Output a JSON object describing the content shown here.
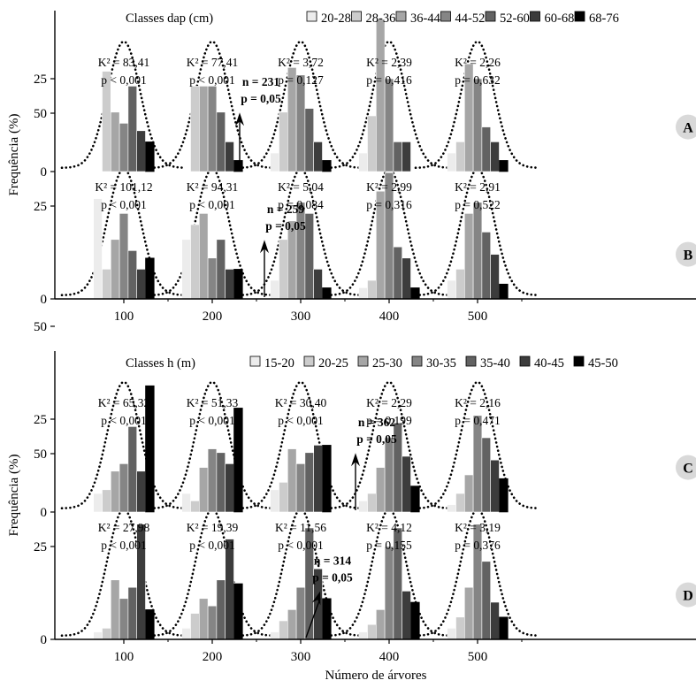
{
  "xlabel": "Número de árvores",
  "chart_data": [
    {
      "type": "bar",
      "ylabel": "Frequência (%)",
      "legend_title": "Classes dap (cm)",
      "legend_entries": [
        "20-28",
        "28-36",
        "36-44",
        "44-52",
        "52-60",
        "60-68",
        "68-76"
      ],
      "x_ticks": [
        "100",
        "200",
        "300",
        "400",
        "500"
      ],
      "y_ticks": [
        "0",
        "25",
        "50"
      ],
      "ylim": [
        0,
        85
      ],
      "panels": [
        {
          "label": "A",
          "groups": [
            {
              "n": 100,
              "k2": "K² = 83,41",
              "p": "p < 0,001",
              "values": [
                0,
                27,
                16,
                13,
                23,
                11,
                8
              ]
            },
            {
              "n": 200,
              "k2": "K² = 77,41",
              "p": "p < 0,001",
              "values": [
                0,
                23,
                23,
                23,
                16,
                8,
                3
              ]
            },
            {
              "n": 300,
              "k2": "K² = 3,72",
              "p": "p = 0,127",
              "values": [
                5,
                16,
                28,
                26,
                17,
                8,
                3
              ]
            },
            {
              "n": 400,
              "k2": "K² = 2,39",
              "p": "p = 0,416",
              "values": [
                5,
                15,
                41,
                25,
                8,
                8,
                0
              ]
            },
            {
              "n": 500,
              "k2": "K² = 2,26",
              "p": "p = 0,632",
              "values": [
                5,
                8,
                29,
                25,
                12,
                8,
                3
              ]
            }
          ],
          "threshold": {
            "n_text": "n = 231",
            "p_text": "p = 0,05",
            "x": 231
          }
        },
        {
          "label": "B",
          "groups": [
            {
              "n": 100,
              "k2": "K² = 101,12",
              "p": "p < 0,001",
              "values": [
                27,
                8,
                16,
                23,
                13,
                8,
                11
              ]
            },
            {
              "n": 200,
              "k2": "K² = 94,31",
              "p": "p < 0,001",
              "values": [
                16,
                20,
                23,
                11,
                16,
                8,
                8
              ]
            },
            {
              "n": 300,
              "k2": "K² = 5,04",
              "p": "p = 0,084",
              "values": [
                5,
                16,
                21,
                26,
                23,
                8,
                3
              ]
            },
            {
              "n": 400,
              "k2": "K² = 2,99",
              "p": "p = 0,316",
              "values": [
                3,
                5,
                29,
                34,
                14,
                11,
                3
              ]
            },
            {
              "n": 500,
              "k2": "K² = 2,91",
              "p": "p = 0,522",
              "values": [
                5,
                8,
                23,
                26,
                18,
                12,
                4
              ]
            }
          ],
          "threshold": {
            "n_text": "n = 259",
            "p_text": "p = 0,05",
            "x": 259
          }
        }
      ]
    },
    {
      "type": "bar",
      "ylabel": "Frequência (%)",
      "legend_title": "Classes h (m)",
      "legend_entries": [
        "15-20",
        "20-25",
        "25-30",
        "30-35",
        "35-40",
        "40-45",
        "45-50"
      ],
      "x_ticks": [
        "100",
        "200",
        "300",
        "400",
        "500"
      ],
      "y_ticks": [
        "0",
        "25",
        "50"
      ],
      "ylim": [
        0,
        85
      ],
      "panels": [
        {
          "label": "C",
          "groups": [
            {
              "n": 100,
              "k2": "K² = 65,32",
              "p": "p < 0,001",
              "values": [
                5,
                6,
                11,
                13,
                23,
                11,
                34
              ]
            },
            {
              "n": 200,
              "k2": "K² = 51,33",
              "p": "p < 0,001",
              "values": [
                5,
                3,
                12,
                17,
                16,
                13,
                28
              ]
            },
            {
              "n": 300,
              "k2": "K² = 30,40",
              "p": "p < 0,001",
              "values": [
                6,
                8,
                17,
                13,
                16,
                18,
                18
              ]
            },
            {
              "n": 400,
              "k2": "K² = 2,29",
              "p": "p = 0,199",
              "values": [
                3,
                5,
                12,
                20,
                24,
                15,
                7
              ]
            },
            {
              "n": 500,
              "k2": "K² = 2,16",
              "p": "p = 0,471",
              "values": [
                2,
                5,
                10,
                26,
                20,
                14,
                9
              ]
            }
          ],
          "threshold": {
            "n_text": "n = 362",
            "p_text": "p = 0,05",
            "x": 362
          }
        },
        {
          "label": "D",
          "groups": [
            {
              "n": 100,
              "k2": "K² = 27,98",
              "p": "p < 0,001",
              "values": [
                2,
                3,
                16,
                11,
                14,
                31,
                8
              ]
            },
            {
              "n": 200,
              "k2": "K² = 19,39",
              "p": "p < 0,001",
              "values": [
                3,
                7,
                11,
                9,
                16,
                27,
                15
              ]
            },
            {
              "n": 300,
              "k2": "K² = 11,56",
              "p": "p < 0,001",
              "values": [
                2,
                5,
                8,
                14,
                30,
                19,
                11
              ]
            },
            {
              "n": 400,
              "k2": "K² = 4,12",
              "p": "p = 0,155",
              "values": [
                2,
                4,
                8,
                25,
                30,
                13,
                10
              ]
            },
            {
              "n": 500,
              "k2": "K² = 3,19",
              "p": "p = 0,376",
              "values": [
                3,
                6,
                14,
                31,
                21,
                10,
                6
              ]
            }
          ],
          "threshold": {
            "n_text": "n = 314",
            "p_text": "p = 0,05",
            "x": 314
          }
        }
      ]
    }
  ],
  "bar_colors": [
    "#ececec",
    "#cccccc",
    "#a6a6a6",
    "#858585",
    "#626262",
    "#3c3c3c",
    "#000000"
  ],
  "normal_curve": {
    "mean_class_offset": 0,
    "peak_percent": 34,
    "style": "dotted"
  }
}
